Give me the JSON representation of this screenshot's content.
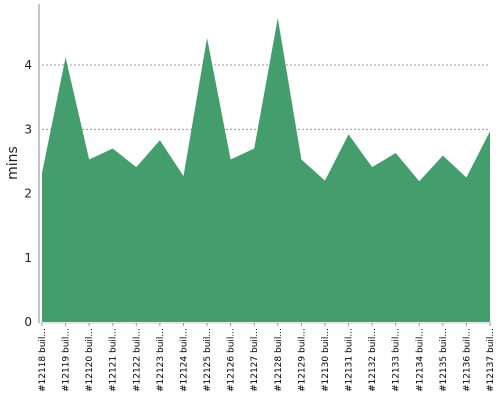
{
  "chart_data": {
    "type": "area",
    "ylabel": "mins",
    "xlabel": "",
    "ylim": [
      0,
      4.95
    ],
    "yticks": [
      0,
      1,
      2,
      3,
      4
    ],
    "grid": "horizontal dotted",
    "legend": "none",
    "fill_color": "#439d6d",
    "categories": [
      "#12118 buil...",
      "#12119 buil...",
      "#12120 buil...",
      "#12121 buil...",
      "#12122 buil...",
      "#12123 buil...",
      "#12124 buil...",
      "#12125 buil...",
      "#12126 buil...",
      "#12127 buil...",
      "#12128 buil...",
      "#12129 buil...",
      "#12130 buil...",
      "#12131 buil...",
      "#12132 buil...",
      "#12133 buil...",
      "#12134 buil...",
      "#12135 buil...",
      "#12136 buil...",
      "#12137 buil..."
    ],
    "values": [
      2.32,
      4.12,
      2.53,
      2.7,
      2.41,
      2.83,
      2.27,
      4.42,
      2.53,
      2.7,
      4.73,
      2.53,
      2.2,
      2.92,
      2.41,
      2.63,
      2.19,
      2.59,
      2.25,
      2.97
    ]
  }
}
